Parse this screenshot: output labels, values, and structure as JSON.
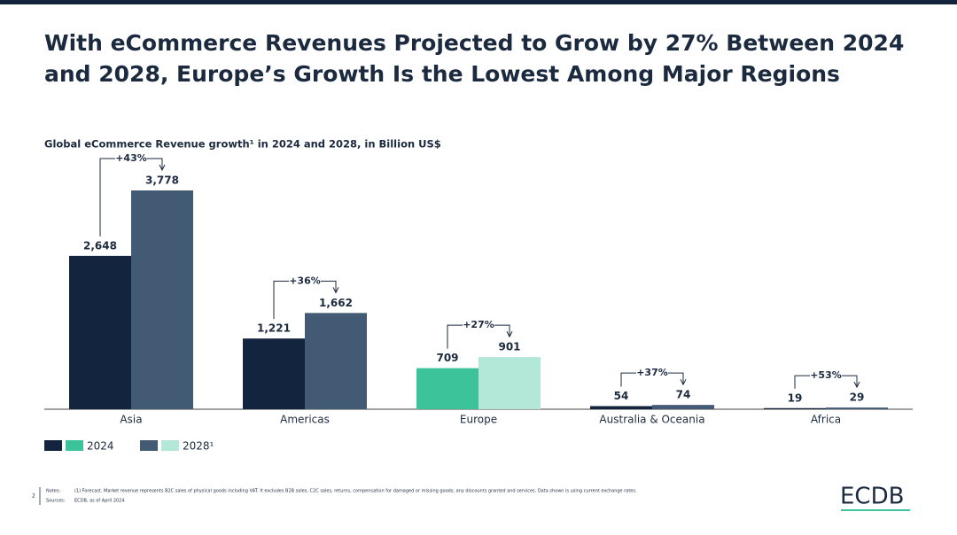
{
  "title_lines": [
    "With eCommerce Revenues Projected to Grow by 27% Between 2024",
    "and 2028, Europe’s Growth Is the Lowest Among Major Regions"
  ],
  "chart_data": {
    "type": "bar",
    "subtitle": "Global eCommerce Revenue growth¹ in 2024 and 2028, in Billion US$",
    "categories": [
      "Asia",
      "Americas",
      "Europe",
      "Australia & Oceania",
      "Africa"
    ],
    "series": [
      {
        "name": "2024",
        "colors": [
          "#13243f",
          "#13243f",
          "#3cc39a",
          "#13243f",
          "#13243f"
        ],
        "values": [
          2648,
          1221,
          709,
          54,
          19
        ],
        "value_labels": [
          "2,648",
          "1,221",
          "709",
          "54",
          "19"
        ]
      },
      {
        "name": "2028¹",
        "colors": [
          "#435a75",
          "#435a75",
          "#b3e8d9",
          "#435a75",
          "#435a75"
        ],
        "values": [
          3778,
          1662,
          901,
          74,
          29
        ],
        "value_labels": [
          "3,778",
          "1,662",
          "901",
          "74",
          "29"
        ]
      }
    ],
    "growth": [
      43,
      36,
      27,
      37,
      53
    ],
    "growth_labels": [
      "+43%",
      "+36%",
      "+27%",
      "+37%",
      "+53%"
    ]
  },
  "footer": {
    "page": "2",
    "notes_label": "Notes:",
    "notes": "(1) Forecast. Market revenue represents B2C sales of physical goods including VAT. It excludes B2B sales, C2C sales, returns, compensation for damaged or missing goods, any discounts granted and services. Data shown is using current exchange rates.",
    "sources_label": "Sources:",
    "sources": "ECDB, as of April 2024",
    "logo": "ECDB"
  }
}
